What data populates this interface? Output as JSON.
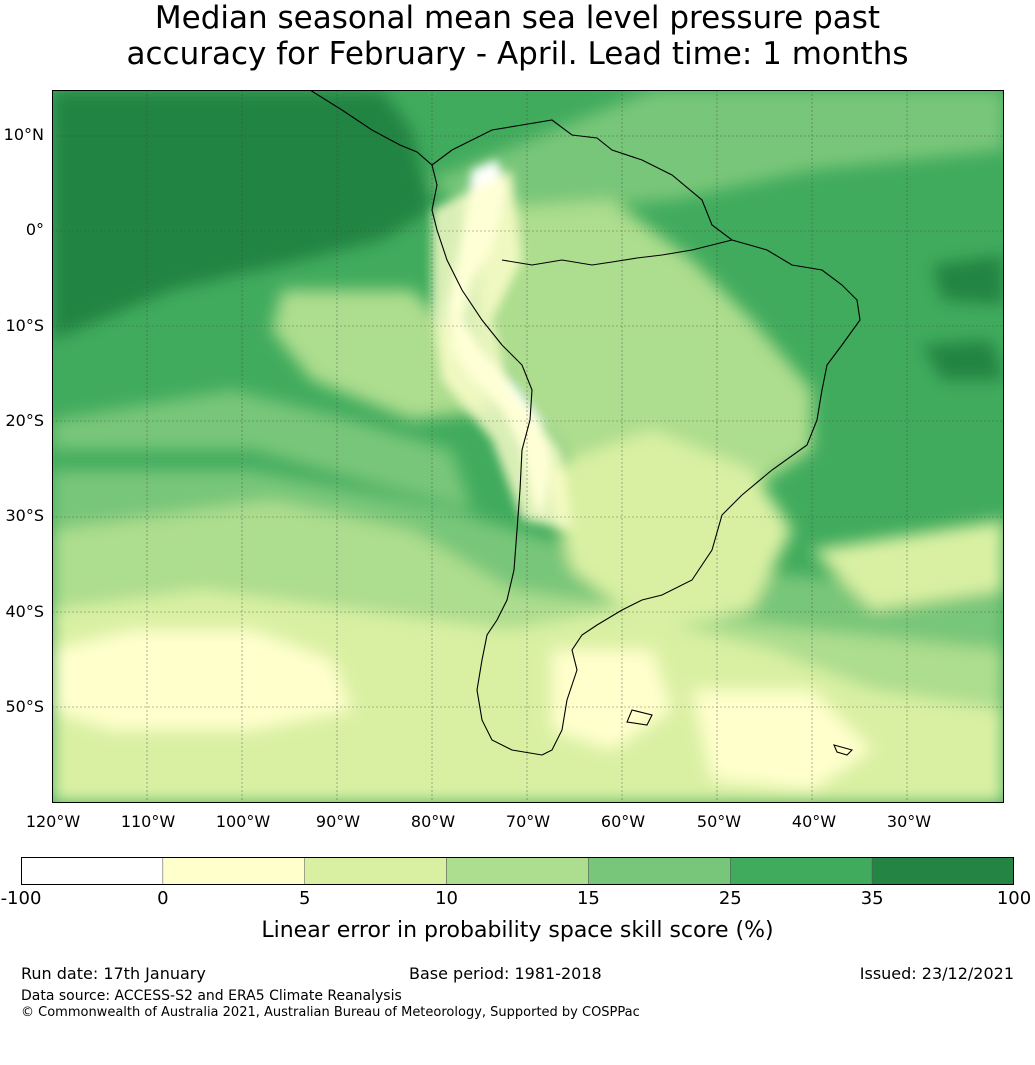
{
  "title": {
    "line1": "Median seasonal mean sea level pressure past",
    "line2": "accuracy for February - April. Lead time: 1 months"
  },
  "map": {
    "lat_labels": [
      "10°N",
      "0°",
      "10°S",
      "20°S",
      "30°S",
      "40°S",
      "50°S"
    ],
    "lon_labels": [
      "120°W",
      "110°W",
      "100°W",
      "90°W",
      "80°W",
      "70°W",
      "60°W",
      "50°W",
      "40°W",
      "30°W"
    ],
    "lat_range": [
      -60,
      15
    ],
    "lon_range": [
      -120,
      -20
    ],
    "region": "South America"
  },
  "colorbar": {
    "ticks": [
      "-100",
      "0",
      "5",
      "10",
      "15",
      "25",
      "35",
      "100"
    ],
    "colors": [
      "#ffffff",
      "#ffffcc",
      "#d9f0a3",
      "#addd8e",
      "#78c679",
      "#41ab5d",
      "#238443"
    ],
    "label": "Linear error in probability space skill score (%)"
  },
  "footer": {
    "run_date": "Run date: 17th January",
    "base_period": "Base period: 1981-2018",
    "issued": "Issued: 23/12/2021",
    "data_source": "Data source: ACCESS-S2 and ERA5 Climate Reanalysis",
    "copyright": "© Commonwealth of Australia 2021, Australian Bureau of Meteorology, Supported by COSPPac"
  }
}
